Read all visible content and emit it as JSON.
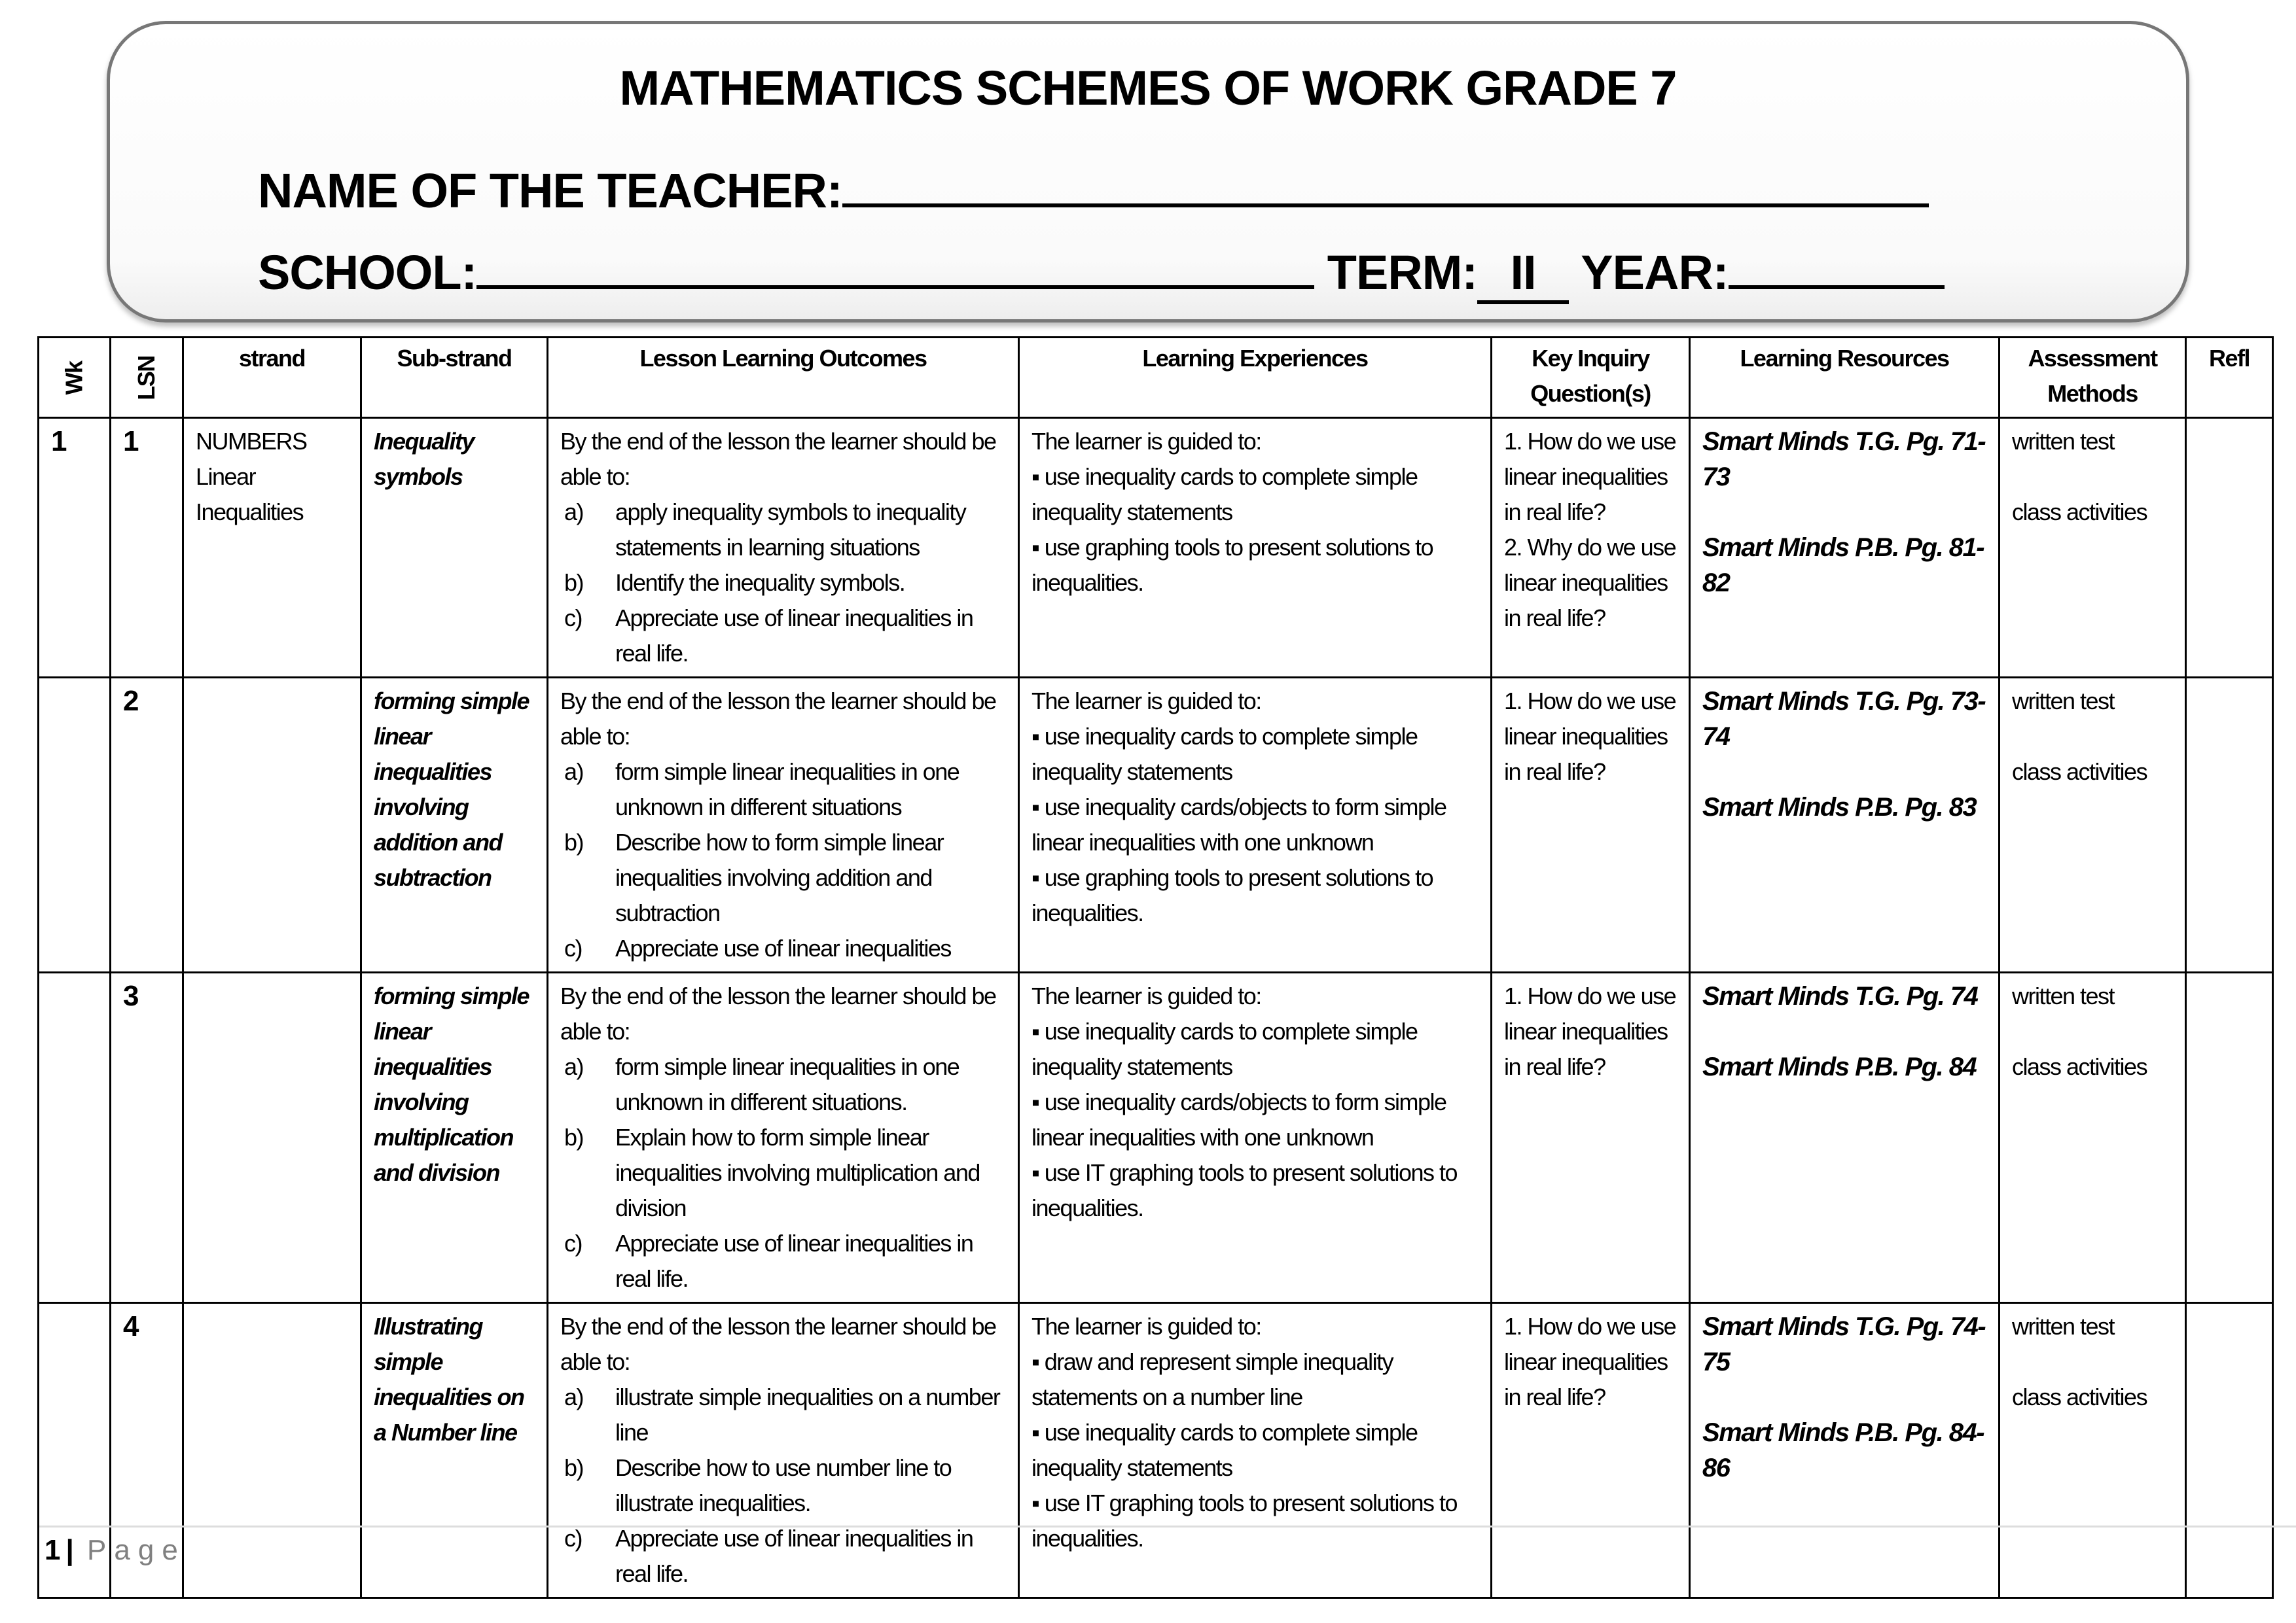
{
  "header": {
    "title": "MATHEMATICS SCHEMES OF WORK GRADE 7",
    "teacher_label": "NAME OF THE TEACHER:",
    "school_label": "SCHOOL:",
    "term_label": "TERM:",
    "term_value": "II",
    "year_label": "YEAR:"
  },
  "table": {
    "columns": [
      "Wk",
      "LSN",
      "strand",
      "Sub-strand",
      "Lesson Learning Outcomes",
      "Learning Experiences",
      "Key Inquiry Question(s)",
      "Learning Resources",
      "Assessment Methods",
      "Refl"
    ],
    "rows": [
      {
        "wk": "1",
        "lsn": "1",
        "strand": [
          "NUMBERS",
          "Linear",
          "Inequalities"
        ],
        "substrand": "Inequality symbols",
        "outcomes": {
          "intro": "By the end of the lesson the learner should be able to:",
          "items": [
            {
              "label": "a)",
              "text": "apply inequality symbols to inequality statements in learning situations"
            },
            {
              "label": "b)",
              "text": "Identify the inequality symbols."
            },
            {
              "label": "c)",
              "text": "Appreciate use of linear inequalities in real life."
            }
          ]
        },
        "experiences": {
          "intro": "The learner is guided to:",
          "bullets": [
            "use inequality cards to complete simple inequality statements",
            "use graphing tools to present solutions to inequalities."
          ]
        },
        "questions": [
          "1. How do we use linear inequalities in real life?",
          "2. Why do we use linear inequalities in real life?"
        ],
        "resources": [
          "Smart Minds T.G. Pg. 71-73",
          "Smart Minds P.B. Pg. 81-82"
        ],
        "assessment": [
          "written test",
          "class activities"
        ]
      },
      {
        "wk": "",
        "lsn": "2",
        "strand": [],
        "substrand": "forming simple linear inequalities involving addition and subtraction",
        "outcomes": {
          "intro": "By the end of the lesson the learner should be able to:",
          "items": [
            {
              "label": "a)",
              "text": "form simple linear inequalities in one unknown in different situations"
            },
            {
              "label": "b)",
              "text": "Describe how to form simple linear inequalities involving addition and subtraction"
            },
            {
              "label": "c)",
              "text": "Appreciate use of linear inequalities"
            }
          ]
        },
        "experiences": {
          "intro": "The learner is guided to:",
          "bullets": [
            "use inequality cards to complete simple inequality statements",
            "use inequality cards/objects to form simple linear inequalities with one unknown",
            "use graphing tools to present solutions to inequalities."
          ]
        },
        "questions": [
          "1. How do we use linear inequalities in real life?"
        ],
        "resources": [
          "Smart Minds T.G. Pg. 73-74",
          "Smart Minds P.B. Pg. 83"
        ],
        "assessment": [
          "written test",
          "class activities"
        ]
      },
      {
        "wk": "",
        "lsn": "3",
        "strand": [],
        "substrand": "forming simple linear inequalities involving multiplication and division",
        "outcomes": {
          "intro": "By the end of the lesson the learner should be able to:",
          "items": [
            {
              "label": "a)",
              "text": "form simple linear inequalities in one unknown in different situations."
            },
            {
              "label": "b)",
              "text": "Explain how to form simple linear inequalities involving multiplication and division"
            },
            {
              "label": "c)",
              "text": "Appreciate use of linear inequalities in real life."
            }
          ]
        },
        "experiences": {
          "intro": "The learner is guided to:",
          "bullets": [
            "use inequality cards to complete simple inequality statements",
            "use inequality cards/objects to form simple linear inequalities with one unknown",
            "use IT graphing tools to present solutions to inequalities."
          ]
        },
        "questions": [
          "1. How do we use linear inequalities in real life?"
        ],
        "resources": [
          "Smart Minds T.G. Pg. 74",
          "Smart Minds P.B. Pg. 84"
        ],
        "assessment": [
          "written test",
          "class activities"
        ]
      },
      {
        "wk": "",
        "lsn": "4",
        "strand": [],
        "substrand": "Illustrating simple inequalities on a Number line",
        "outcomes": {
          "intro": "By the end of the lesson the learner should be able to:",
          "items": [
            {
              "label": "a)",
              "text": "illustrate simple inequalities on a number line"
            },
            {
              "label": "b)",
              "text": "Describe how to use number line to illustrate inequalities."
            },
            {
              "label": "c)",
              "text": "Appreciate use of linear inequalities in real life."
            }
          ]
        },
        "experiences": {
          "intro": "The learner is guided to:",
          "bullets": [
            "draw and represent simple inequality statements on a number line",
            "use inequality cards to complete simple inequality statements",
            "use IT graphing tools to present solutions to inequalities."
          ]
        },
        "questions": [
          "1. How do we use linear inequalities in real life?"
        ],
        "resources": [
          "Smart Minds T.G. Pg. 74-75",
          "Smart Minds P.B. Pg. 84-86"
        ],
        "assessment": [
          "written test",
          "class activities"
        ]
      }
    ]
  },
  "footer": {
    "page_number": "1",
    "separator": "|",
    "page_label": "Page"
  }
}
